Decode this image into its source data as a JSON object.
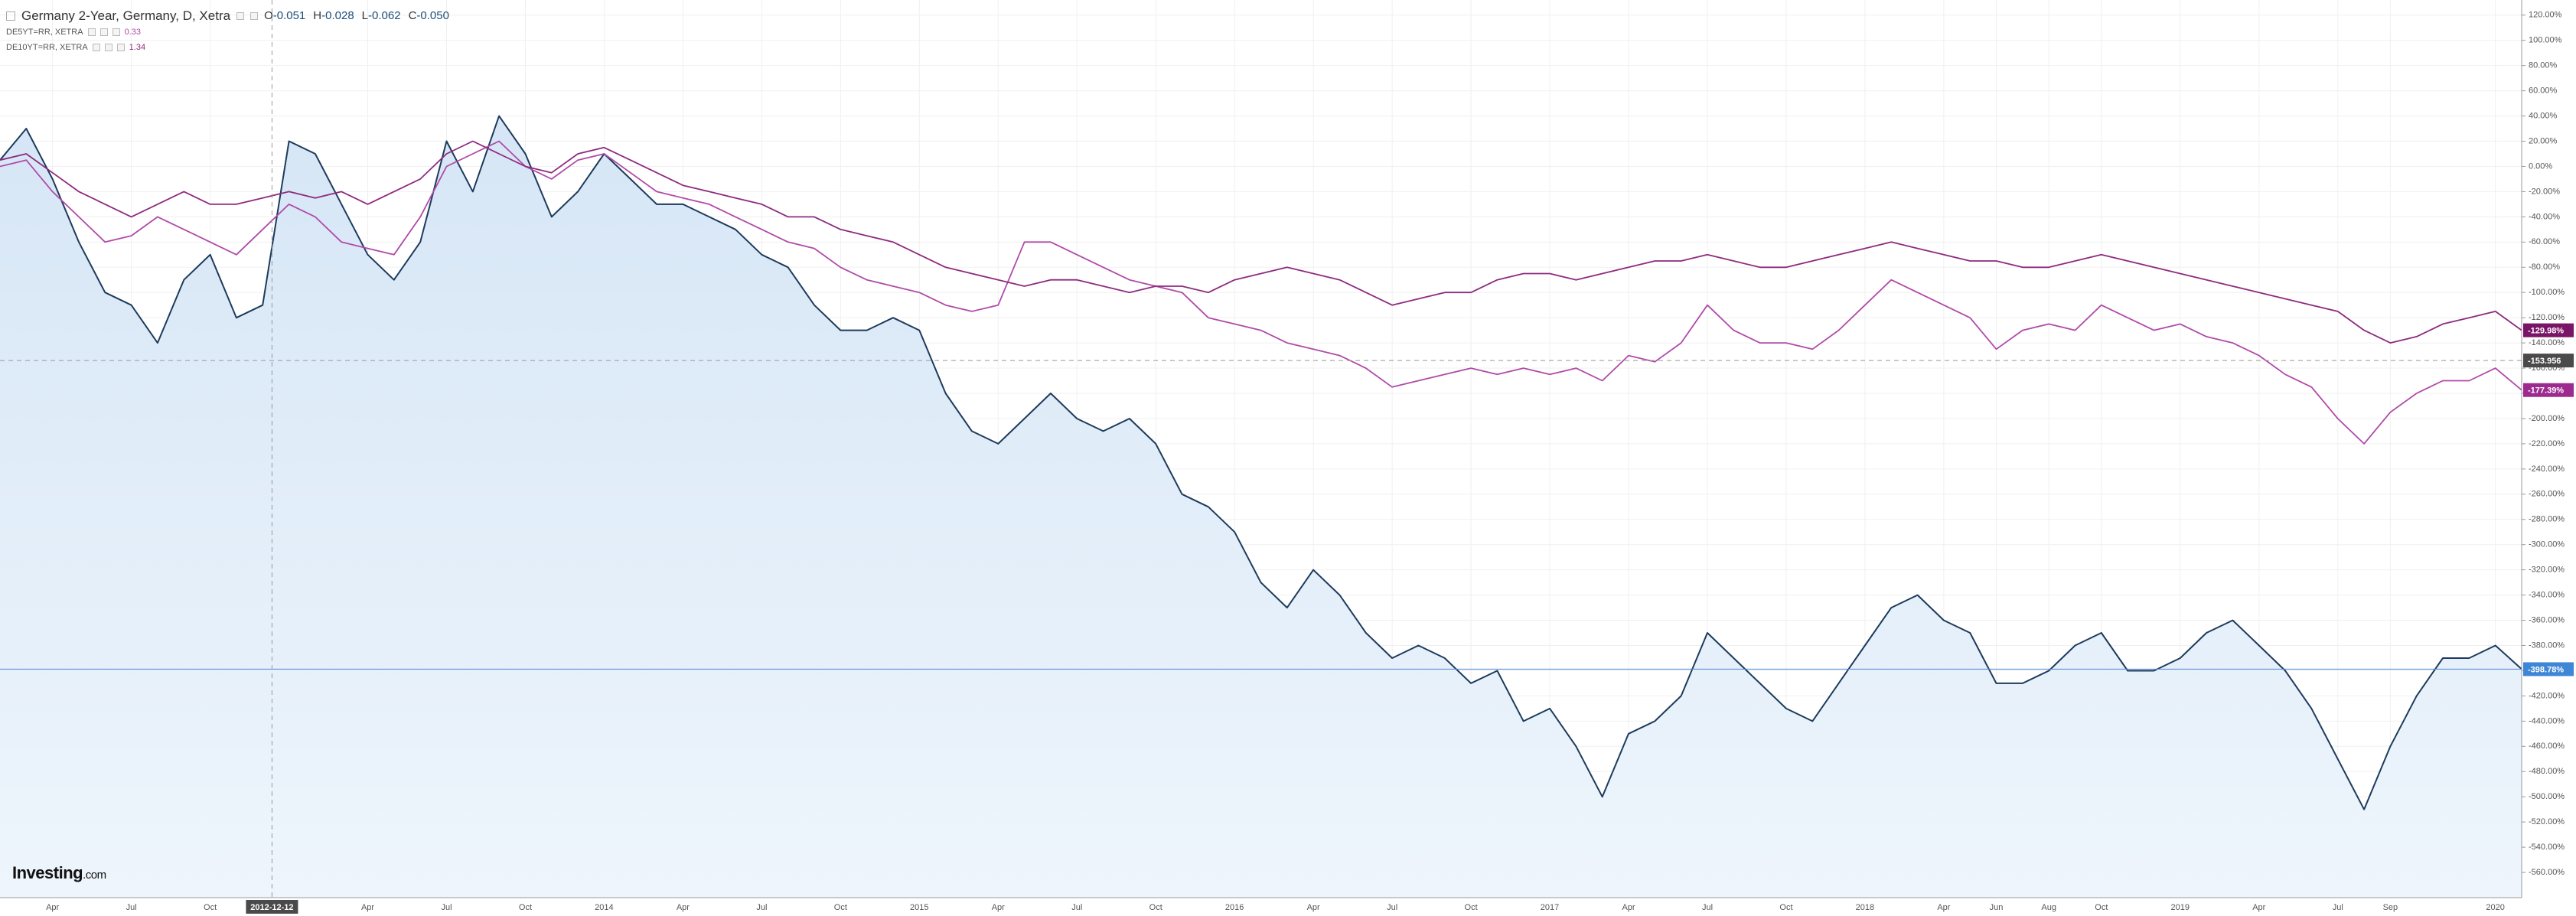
{
  "chart_data": {
    "type": "line",
    "title": "Germany 2-Year, Germany, D, Xetra",
    "ohlc": [
      {
        "key": "O",
        "value": "-0.051"
      },
      {
        "key": "H",
        "value": "-0.028"
      },
      {
        "key": "L",
        "value": "-0.062"
      },
      {
        "key": "C",
        "value": "-0.050"
      }
    ],
    "logo": [
      "Investing",
      ".com"
    ],
    "x": [
      "2012-02",
      "2012-03",
      "2012-04",
      "2012-05",
      "2012-06",
      "2012-07",
      "2012-08",
      "2012-09",
      "2012-10",
      "2012-11",
      "2012-12",
      "2013-01",
      "2013-02",
      "2013-03",
      "2013-04",
      "2013-05",
      "2013-06",
      "2013-07",
      "2013-08",
      "2013-09",
      "2013-10",
      "2013-11",
      "2013-12",
      "2014-01",
      "2014-02",
      "2014-03",
      "2014-04",
      "2014-05",
      "2014-06",
      "2014-07",
      "2014-08",
      "2014-09",
      "2014-10",
      "2014-11",
      "2014-12",
      "2015-01",
      "2015-02",
      "2015-03",
      "2015-04",
      "2015-05",
      "2015-06",
      "2015-07",
      "2015-08",
      "2015-09",
      "2015-10",
      "2015-11",
      "2015-12",
      "2016-01",
      "2016-02",
      "2016-03",
      "2016-04",
      "2016-05",
      "2016-06",
      "2016-07",
      "2016-08",
      "2016-09",
      "2016-10",
      "2016-11",
      "2016-12",
      "2017-01",
      "2017-02",
      "2017-03",
      "2017-04",
      "2017-05",
      "2017-06",
      "2017-07",
      "2017-08",
      "2017-09",
      "2017-10",
      "2017-11",
      "2017-12",
      "2018-01",
      "2018-02",
      "2018-03",
      "2018-04",
      "2018-05",
      "2018-06",
      "2018-07",
      "2018-08",
      "2018-09",
      "2018-10",
      "2018-11",
      "2018-12",
      "2019-01",
      "2019-02",
      "2019-03",
      "2019-04",
      "2019-05",
      "2019-06",
      "2019-07",
      "2019-08",
      "2019-09",
      "2019-10",
      "2019-11",
      "2019-12",
      "2020-01",
      "2020-02"
    ],
    "series": [
      {
        "name": "Germany 2-Year, Germany, D, Xetra",
        "color": "#1d3b5c",
        "fill": true,
        "tag_color": "#3f86d6",
        "last_label": "-398.78%",
        "values": [
          5,
          30,
          -10,
          -60,
          -100,
          -110,
          -140,
          -90,
          -70,
          -120,
          -110,
          20,
          10,
          -30,
          -70,
          -90,
          -60,
          20,
          -20,
          40,
          10,
          -40,
          -20,
          10,
          -10,
          -30,
          -30,
          -40,
          -50,
          -70,
          -80,
          -110,
          -130,
          -130,
          -120,
          -130,
          -180,
          -210,
          -220,
          -200,
          -180,
          -200,
          -210,
          -200,
          -220,
          -260,
          -270,
          -290,
          -330,
          -350,
          -320,
          -340,
          -370,
          -390,
          -380,
          -390,
          -410,
          -400,
          -440,
          -430,
          -460,
          -500,
          -450,
          -440,
          -420,
          -370,
          -390,
          -410,
          -430,
          -440,
          -410,
          -380,
          -350,
          -340,
          -360,
          -370,
          -410,
          -410,
          -400,
          -380,
          -370,
          -400,
          -400,
          -390,
          -370,
          -360,
          -380,
          -400,
          -430,
          -470,
          -510,
          -460,
          -420,
          -390,
          -390,
          -380,
          -398.78
        ]
      },
      {
        "name": "DE5YT=RR, XETRA",
        "color": "#b04aa8",
        "fill": false,
        "tag_color": "#9c2a8f",
        "last_label": "-177.39%",
        "legend_value": 0.33,
        "values": [
          0,
          5,
          -20,
          -40,
          -60,
          -55,
          -40,
          -50,
          -60,
          -70,
          -50,
          -30,
          -40,
          -60,
          -65,
          -70,
          -40,
          0,
          10,
          20,
          0,
          -10,
          5,
          10,
          -5,
          -20,
          -25,
          -30,
          -40,
          -50,
          -60,
          -65,
          -80,
          -90,
          -95,
          -100,
          -110,
          -115,
          -110,
          -60,
          -60,
          -70,
          -80,
          -90,
          -95,
          -100,
          -120,
          -125,
          -130,
          -140,
          -145,
          -150,
          -160,
          -175,
          -170,
          -165,
          -160,
          -165,
          -160,
          -165,
          -160,
          -170,
          -150,
          -155,
          -140,
          -110,
          -130,
          -140,
          -140,
          -145,
          -130,
          -110,
          -90,
          -100,
          -110,
          -120,
          -145,
          -130,
          -125,
          -130,
          -110,
          -120,
          -130,
          -125,
          -135,
          -140,
          -150,
          -165,
          -175,
          -200,
          -220,
          -195,
          -180,
          -170,
          -170,
          -160,
          -177.39
        ]
      },
      {
        "name": "DE10YT=RR, XETRA",
        "color": "#8e2a7e",
        "fill": false,
        "tag_color": "#7a1466",
        "last_label": "-129.98%",
        "legend_value": 1.34,
        "values": [
          5,
          10,
          -5,
          -20,
          -30,
          -40,
          -30,
          -20,
          -30,
          -30,
          -25,
          -20,
          -25,
          -20,
          -30,
          -20,
          -10,
          10,
          20,
          10,
          0,
          -5,
          10,
          15,
          5,
          -5,
          -15,
          -20,
          -25,
          -30,
          -40,
          -40,
          -50,
          -55,
          -60,
          -70,
          -80,
          -85,
          -90,
          -95,
          -90,
          -90,
          -95,
          -100,
          -95,
          -95,
          -100,
          -90,
          -85,
          -80,
          -85,
          -90,
          -100,
          -110,
          -105,
          -100,
          -100,
          -90,
          -85,
          -85,
          -90,
          -85,
          -80,
          -75,
          -75,
          -70,
          -75,
          -80,
          -80,
          -75,
          -70,
          -65,
          -60,
          -65,
          -70,
          -75,
          -75,
          -80,
          -80,
          -75,
          -70,
          -75,
          -80,
          -85,
          -90,
          -95,
          -100,
          -105,
          -110,
          -115,
          -130,
          -140,
          -135,
          -125,
          -120,
          -115,
          -129.98
        ]
      }
    ],
    "xlim": [
      "2012-02",
      "2020-02"
    ],
    "xticks": [
      {
        "value": "2012-04",
        "label": "Apr"
      },
      {
        "value": "2012-07",
        "label": "Jul"
      },
      {
        "value": "2012-10",
        "label": "Oct"
      },
      {
        "value": "2013-04",
        "label": "Apr"
      },
      {
        "value": "2013-07",
        "label": "Jul"
      },
      {
        "value": "2013-10",
        "label": "Oct"
      },
      {
        "value": "2014-01",
        "label": "2014"
      },
      {
        "value": "2014-04",
        "label": "Apr"
      },
      {
        "value": "2014-07",
        "label": "Jul"
      },
      {
        "value": "2014-10",
        "label": "Oct"
      },
      {
        "value": "2015-01",
        "label": "2015"
      },
      {
        "value": "2015-04",
        "label": "Apr"
      },
      {
        "value": "2015-07",
        "label": "Jul"
      },
      {
        "value": "2015-10",
        "label": "Oct"
      },
      {
        "value": "2016-01",
        "label": "2016"
      },
      {
        "value": "2016-04",
        "label": "Apr"
      },
      {
        "value": "2016-07",
        "label": "Jul"
      },
      {
        "value": "2016-10",
        "label": "Oct"
      },
      {
        "value": "2017-01",
        "label": "2017"
      },
      {
        "value": "2017-04",
        "label": "Apr"
      },
      {
        "value": "2017-07",
        "label": "Jul"
      },
      {
        "value": "2017-10",
        "label": "Oct"
      },
      {
        "value": "2018-01",
        "label": "2018"
      },
      {
        "value": "2018-04",
        "label": "Apr"
      },
      {
        "value": "2018-06",
        "label": "Jun"
      },
      {
        "value": "2018-08",
        "label": "Aug"
      },
      {
        "value": "2018-10",
        "label": "Oct"
      },
      {
        "value": "2019-01",
        "label": "2019"
      },
      {
        "value": "2019-04",
        "label": "Apr"
      },
      {
        "value": "2019-07",
        "label": "Jul"
      },
      {
        "value": "2019-09",
        "label": "Sep"
      },
      {
        "value": "2020-01",
        "label": "2020"
      }
    ],
    "ylim": [
      -580,
      132
    ],
    "yticks": [
      {
        "value": 120,
        "label": "120.00%"
      },
      {
        "value": 100,
        "label": "100.00%"
      },
      {
        "value": 80,
        "label": "80.00%"
      },
      {
        "value": 60,
        "label": "60.00%"
      },
      {
        "value": 40,
        "label": "40.00%"
      },
      {
        "value": 20,
        "label": "20.00%"
      },
      {
        "value": 0,
        "label": "0.00%"
      },
      {
        "value": -20,
        "label": "-20.00%"
      },
      {
        "value": -40,
        "label": "-40.00%"
      },
      {
        "value": -60,
        "label": "-60.00%"
      },
      {
        "value": -80,
        "label": "-80.00%"
      },
      {
        "value": -100,
        "label": "-100.00%"
      },
      {
        "value": -120,
        "label": "-120.00%"
      },
      {
        "value": -140,
        "label": "-140.00%"
      },
      {
        "value": -160,
        "label": "-160.00%"
      },
      {
        "value": -180,
        "label": "-180.00%"
      },
      {
        "value": -200,
        "label": "-200.00%"
      },
      {
        "value": -220,
        "label": "-220.00%"
      },
      {
        "value": -240,
        "label": "-240.00%"
      },
      {
        "value": -260,
        "label": "-260.00%"
      },
      {
        "value": -280,
        "label": "-280.00%"
      },
      {
        "value": -300,
        "label": "-300.00%"
      },
      {
        "value": -320,
        "label": "-320.00%"
      },
      {
        "value": -340,
        "label": "-340.00%"
      },
      {
        "value": -360,
        "label": "-360.00%"
      },
      {
        "value": -380,
        "label": "-380.00%"
      },
      {
        "value": -400,
        "label": "-400.00%"
      },
      {
        "value": -420,
        "label": "-420.00%"
      },
      {
        "value": -440,
        "label": "-440.00%"
      },
      {
        "value": -460,
        "label": "-460.00%"
      },
      {
        "value": -480,
        "label": "-480.00%"
      },
      {
        "value": -500,
        "label": "-500.00%"
      },
      {
        "value": -520,
        "label": "-520.00%"
      },
      {
        "value": -540,
        "label": "-540.00%"
      },
      {
        "value": -560,
        "label": "-560.00%"
      }
    ],
    "grid": true,
    "crosshair": {
      "x": "2012-12-12",
      "y": -153.956
    }
  }
}
